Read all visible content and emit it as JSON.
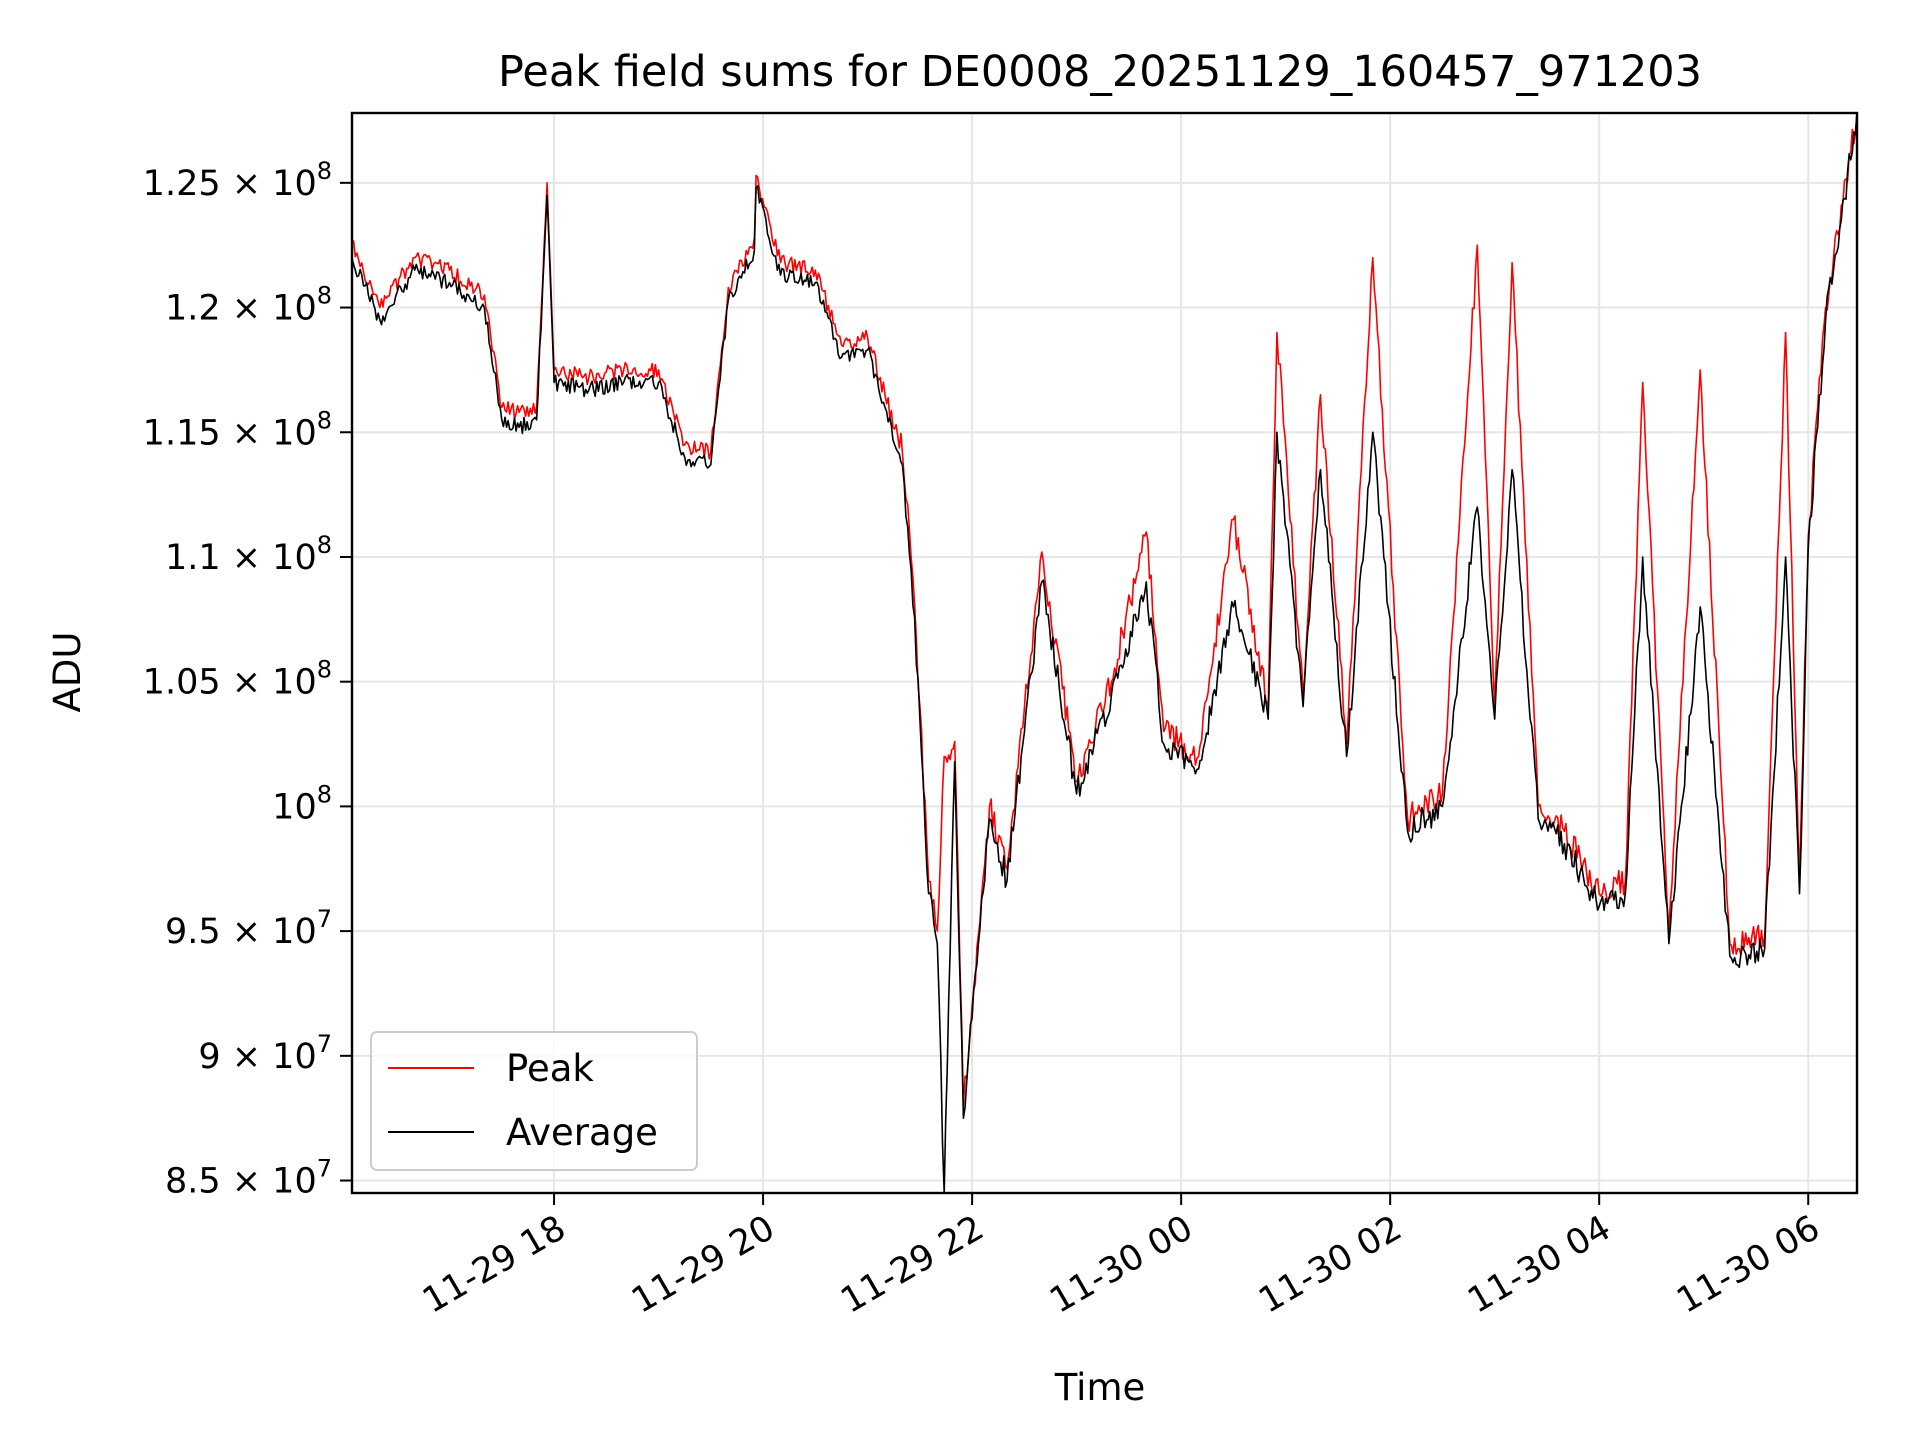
{
  "chart_data": {
    "type": "line",
    "title": "Peak field sums for DE0008_20251129_160457_971203",
    "xlabel": "Time",
    "ylabel": "ADU",
    "grid": true,
    "legend_position": "lower-left",
    "xlim": [
      "2025-11-29 16:04",
      "2025-11-30 06:28"
    ],
    "ylim": [
      84500000,
      127800000
    ],
    "x_ticks": [
      {
        "value": "2025-11-29 18:00",
        "label": "11-29 18"
      },
      {
        "value": "2025-11-29 20:00",
        "label": "11-29 20"
      },
      {
        "value": "2025-11-29 22:00",
        "label": "11-29 22"
      },
      {
        "value": "2025-11-30 00:00",
        "label": "11-30 00"
      },
      {
        "value": "2025-11-30 02:00",
        "label": "11-30 02"
      },
      {
        "value": "2025-11-30 04:00",
        "label": "11-30 04"
      },
      {
        "value": "2025-11-30 06:00",
        "label": "11-30 06"
      }
    ],
    "y_ticks": [
      {
        "value": 85000000,
        "mantissa": "8.5",
        "exponent": "7"
      },
      {
        "value": 90000000,
        "mantissa": "9",
        "exponent": "7"
      },
      {
        "value": 95000000,
        "mantissa": "9.5",
        "exponent": "7"
      },
      {
        "value": 100000000,
        "mantissa": "",
        "exponent": "8"
      },
      {
        "value": 105000000,
        "mantissa": "1.05",
        "exponent": "8"
      },
      {
        "value": 110000000,
        "mantissa": "1.1",
        "exponent": "8"
      },
      {
        "value": 115000000,
        "mantissa": "1.15",
        "exponent": "8"
      },
      {
        "value": 120000000,
        "mantissa": "1.2",
        "exponent": "8"
      },
      {
        "value": 125000000,
        "mantissa": "1.25",
        "exponent": "8"
      }
    ],
    "series": [
      {
        "name": "Peak",
        "color": "#ff0000",
        "points": [
          [
            "2025-11-29 16:04",
            122500000
          ],
          [
            "2025-11-29 16:20",
            120000000
          ],
          [
            "2025-11-29 16:40",
            122000000
          ],
          [
            "2025-11-29 17:00",
            121500000
          ],
          [
            "2025-11-29 17:20",
            120500000
          ],
          [
            "2025-11-29 17:30",
            116000000
          ],
          [
            "2025-11-29 17:40",
            115800000
          ],
          [
            "2025-11-29 17:50",
            116000000
          ],
          [
            "2025-11-29 17:56",
            125000000
          ],
          [
            "2025-11-29 18:00",
            117500000
          ],
          [
            "2025-11-29 18:20",
            117200000
          ],
          [
            "2025-11-29 18:40",
            117500000
          ],
          [
            "2025-11-29 19:00",
            117500000
          ],
          [
            "2025-11-29 19:15",
            114500000
          ],
          [
            "2025-11-29 19:30",
            114200000
          ],
          [
            "2025-11-29 19:40",
            120800000
          ],
          [
            "2025-11-29 19:55",
            122800000
          ],
          [
            "2025-11-29 19:56",
            125300000
          ],
          [
            "2025-11-29 20:10",
            121800000
          ],
          [
            "2025-11-29 20:30",
            121500000
          ],
          [
            "2025-11-29 20:45",
            118500000
          ],
          [
            "2025-11-29 21:00",
            118800000
          ],
          [
            "2025-11-29 21:10",
            116500000
          ],
          [
            "2025-11-29 21:20",
            114200000
          ],
          [
            "2025-11-29 21:25",
            110000000
          ],
          [
            "2025-11-29 21:30",
            104000000
          ],
          [
            "2025-11-29 21:35",
            97000000
          ],
          [
            "2025-11-29 21:40",
            95000000
          ],
          [
            "2025-11-29 21:44",
            102000000
          ],
          [
            "2025-11-29 21:50",
            102600000
          ],
          [
            "2025-11-29 21:55",
            88000000
          ],
          [
            "2025-11-29 22:00",
            92000000
          ],
          [
            "2025-11-29 22:10",
            100000000
          ],
          [
            "2025-11-29 22:20",
            97500000
          ],
          [
            "2025-11-29 22:40",
            110200000
          ],
          [
            "2025-11-29 23:00",
            101000000
          ],
          [
            "2025-11-29 23:20",
            105000000
          ],
          [
            "2025-11-29 23:40",
            111000000
          ],
          [
            "2025-11-29 23:50",
            103000000
          ],
          [
            "2025-11-30 00:10",
            102000000
          ],
          [
            "2025-11-30 00:30",
            111500000
          ],
          [
            "2025-11-30 00:50",
            104000000
          ],
          [
            "2025-11-30 00:55",
            119000000
          ],
          [
            "2025-11-30 01:10",
            104500000
          ],
          [
            "2025-11-30 01:20",
            116500000
          ],
          [
            "2025-11-30 01:35",
            102500000
          ],
          [
            "2025-11-30 01:50",
            122000000
          ],
          [
            "2025-11-30 02:10",
            99500000
          ],
          [
            "2025-11-30 02:30",
            100500000
          ],
          [
            "2025-11-30 02:50",
            122500000
          ],
          [
            "2025-11-30 03:00",
            104000000
          ],
          [
            "2025-11-30 03:10",
            121800000
          ],
          [
            "2025-11-30 03:25",
            100000000
          ],
          [
            "2025-11-30 03:40",
            99000000
          ],
          [
            "2025-11-30 04:00",
            96500000
          ],
          [
            "2025-11-30 04:15",
            97000000
          ],
          [
            "2025-11-30 04:25",
            117000000
          ],
          [
            "2025-11-30 04:40",
            95000000
          ],
          [
            "2025-11-30 04:58",
            117500000
          ],
          [
            "2025-11-30 05:15",
            94500000
          ],
          [
            "2025-11-30 05:35",
            94800000
          ],
          [
            "2025-11-30 05:47",
            119000000
          ],
          [
            "2025-11-30 05:55",
            97000000
          ],
          [
            "2025-11-30 06:00",
            110800000
          ],
          [
            "2025-11-30 06:10",
            120000000
          ],
          [
            "2025-11-30 06:28",
            127800000
          ]
        ]
      },
      {
        "name": "Average",
        "color": "#000000",
        "points": [
          [
            "2025-11-29 16:04",
            122000000
          ],
          [
            "2025-11-29 16:20",
            119500000
          ],
          [
            "2025-11-29 16:40",
            121500000
          ],
          [
            "2025-11-29 17:00",
            121000000
          ],
          [
            "2025-11-29 17:20",
            120000000
          ],
          [
            "2025-11-29 17:30",
            115500000
          ],
          [
            "2025-11-29 17:40",
            115200000
          ],
          [
            "2025-11-29 17:50",
            115500000
          ],
          [
            "2025-11-29 17:56",
            124500000
          ],
          [
            "2025-11-29 18:00",
            117000000
          ],
          [
            "2025-11-29 18:20",
            116700000
          ],
          [
            "2025-11-29 18:40",
            117000000
          ],
          [
            "2025-11-29 19:00",
            117000000
          ],
          [
            "2025-11-29 19:15",
            114000000
          ],
          [
            "2025-11-29 19:30",
            113700000
          ],
          [
            "2025-11-29 19:40",
            120300000
          ],
          [
            "2025-11-29 19:55",
            122300000
          ],
          [
            "2025-11-29 19:56",
            124800000
          ],
          [
            "2025-11-29 20:10",
            121300000
          ],
          [
            "2025-11-29 20:30",
            121000000
          ],
          [
            "2025-11-29 20:45",
            118000000
          ],
          [
            "2025-11-29 21:00",
            118300000
          ],
          [
            "2025-11-29 21:10",
            116000000
          ],
          [
            "2025-11-29 21:20",
            113700000
          ],
          [
            "2025-11-29 21:25",
            109500000
          ],
          [
            "2025-11-29 21:30",
            103500000
          ],
          [
            "2025-11-29 21:35",
            96500000
          ],
          [
            "2025-11-29 21:40",
            94500000
          ],
          [
            "2025-11-29 21:44",
            84500000
          ],
          [
            "2025-11-29 21:50",
            101800000
          ],
          [
            "2025-11-29 21:55",
            87500000
          ],
          [
            "2025-11-29 22:00",
            91500000
          ],
          [
            "2025-11-29 22:10",
            99500000
          ],
          [
            "2025-11-29 22:20",
            97000000
          ],
          [
            "2025-11-29 22:40",
            109000000
          ],
          [
            "2025-11-29 23:00",
            100500000
          ],
          [
            "2025-11-29 23:20",
            104500000
          ],
          [
            "2025-11-29 23:40",
            109000000
          ],
          [
            "2025-11-29 23:50",
            102500000
          ],
          [
            "2025-11-30 00:10",
            101500000
          ],
          [
            "2025-11-30 00:30",
            108000000
          ],
          [
            "2025-11-30 00:50",
            103500000
          ],
          [
            "2025-11-30 00:55",
            115000000
          ],
          [
            "2025-11-30 01:10",
            104000000
          ],
          [
            "2025-11-30 01:20",
            113500000
          ],
          [
            "2025-11-30 01:35",
            102000000
          ],
          [
            "2025-11-30 01:50",
            115000000
          ],
          [
            "2025-11-30 02:10",
            99000000
          ],
          [
            "2025-11-30 02:30",
            100000000
          ],
          [
            "2025-11-30 02:50",
            112000000
          ],
          [
            "2025-11-30 03:00",
            103500000
          ],
          [
            "2025-11-30 03:10",
            113500000
          ],
          [
            "2025-11-30 03:25",
            99500000
          ],
          [
            "2025-11-30 03:40",
            98500000
          ],
          [
            "2025-11-30 04:00",
            96000000
          ],
          [
            "2025-11-30 04:15",
            96500000
          ],
          [
            "2025-11-30 04:25",
            110000000
          ],
          [
            "2025-11-30 04:40",
            94500000
          ],
          [
            "2025-11-30 04:58",
            108000000
          ],
          [
            "2025-11-30 05:15",
            94000000
          ],
          [
            "2025-11-30 05:35",
            94300000
          ],
          [
            "2025-11-30 05:47",
            110000000
          ],
          [
            "2025-11-30 05:55",
            96500000
          ],
          [
            "2025-11-30 06:00",
            110300000
          ],
          [
            "2025-11-30 06:10",
            119500000
          ],
          [
            "2025-11-30 06:28",
            127800000
          ]
        ]
      }
    ]
  }
}
